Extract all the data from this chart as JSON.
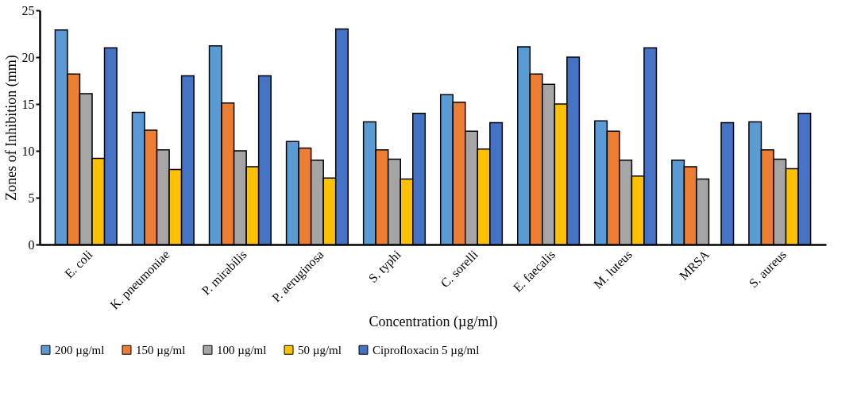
{
  "chart_data": {
    "type": "bar",
    "xlabel": "Concentration (µg/ml)",
    "ylabel": "Zones of Inhibition (mm)",
    "categories": [
      "E. coli",
      "K. pneumoniae",
      "P. mirabilis",
      "P. aeruginosa",
      "S. typhi",
      "C. sorelli",
      "E. faecalis",
      "M. luteus",
      "MRSA",
      "S. aureus"
    ],
    "series": [
      {
        "name": "200 µg/ml",
        "color": "#5b9bd5",
        "values": [
          22.9,
          14.1,
          21.2,
          11.0,
          13.1,
          16.0,
          21.1,
          13.2,
          9.0,
          13.1
        ]
      },
      {
        "name": "150 µg/ml",
        "color": "#ed7d31",
        "values": [
          18.2,
          12.2,
          15.1,
          10.3,
          10.1,
          15.2,
          18.2,
          12.1,
          8.3,
          10.1
        ]
      },
      {
        "name": "100 µg/ml",
        "color": "#a5a5a5",
        "values": [
          16.1,
          10.1,
          10.0,
          9.0,
          9.1,
          12.1,
          17.1,
          9.0,
          7.0,
          9.1
        ]
      },
      {
        "name": "50 µg/ml",
        "color": "#ffc000",
        "values": [
          9.2,
          8.0,
          8.3,
          7.1,
          7.0,
          10.2,
          15.0,
          7.3,
          null,
          8.1
        ]
      },
      {
        "name": "Ciprofloxacin 5 µg/ml",
        "color": "#4472c4",
        "values": [
          21,
          18,
          18,
          23,
          14,
          13,
          20,
          21,
          13,
          14
        ]
      }
    ],
    "ylim": [
      0,
      25
    ],
    "yticks": [
      0,
      5,
      10,
      15,
      20,
      25
    ],
    "grid": false,
    "legend": "bottom"
  }
}
